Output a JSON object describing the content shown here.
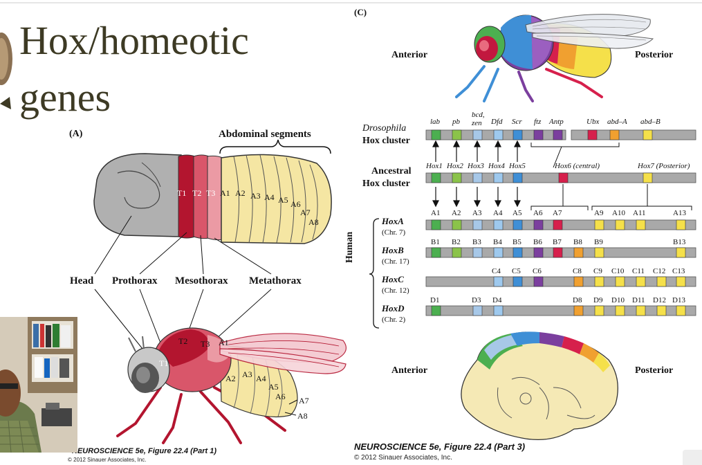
{
  "slide": {
    "title_line1": "Hox/homeotic",
    "title_line2": "genes"
  },
  "panel_a": {
    "label": "(A)",
    "abdominal_segments": "Abdominal segments",
    "segment_labels": [
      "T1",
      "T2",
      "T3",
      "A1",
      "A2",
      "A3",
      "A4",
      "A5",
      "A6",
      "A7",
      "A8"
    ],
    "region_labels": {
      "head": "Head",
      "prothorax": "Prothorax",
      "mesothorax": "Mesothorax",
      "metathorax": "Metathorax"
    },
    "adult_labels": {
      "t1": "T1",
      "t2": "T2",
      "t3": "T3",
      "a1": "A1",
      "a2": "A2",
      "a3": "A3",
      "a4": "A4",
      "a5": "A5",
      "a6": "A6",
      "a7": "A7",
      "a8": "A8"
    },
    "caption": "NEUROSCIENCE 5e, Figure 22.4 (Part 1)",
    "copyright": "© 2012 Sinauer Associates, Inc."
  },
  "panel_c": {
    "label": "(C)",
    "anterior": "Anterior",
    "posterior": "Posterior",
    "drosophila_label_1": "Drosophila",
    "drosophila_label_2": "Hox cluster",
    "drosophila_genes": [
      "lab",
      "pb",
      "bcd,",
      "zen",
      "Dfd",
      "Scr",
      "ftz",
      "Antp",
      "Ubx",
      "abd–A",
      "abd–B"
    ],
    "ancestral_label_1": "Ancestral",
    "ancestral_label_2": "Hox cluster",
    "ancestral_genes": [
      "Hox1",
      "Hox2",
      "Hox3",
      "Hox4",
      "Hox5",
      "Hox6 (central)",
      "Hox7 (Posterior)"
    ],
    "human_label": "Human",
    "hoxa": {
      "name": "HoxA",
      "chr": "(Chr. 7)",
      "genes": [
        "A1",
        "A2",
        "A3",
        "A4",
        "A5",
        "A6",
        "A7",
        "A9",
        "A10",
        "A11",
        "A13"
      ]
    },
    "hoxb": {
      "name": "HoxB",
      "chr": "(Chr. 17)",
      "genes": [
        "B1",
        "B2",
        "B3",
        "B4",
        "B5",
        "B6",
        "B7",
        "B8",
        "B9",
        "B13"
      ]
    },
    "hoxc": {
      "name": "HoxC",
      "chr": "(Chr. 12)",
      "genes": [
        "C4",
        "C5",
        "C6",
        "C8",
        "C9",
        "C10",
        "C11",
        "C12",
        "C13"
      ]
    },
    "hoxd": {
      "name": "HoxD",
      "chr": "(Chr. 2)",
      "genes": [
        "D1",
        "D3",
        "D4",
        "D8",
        "D9",
        "D10",
        "D11",
        "D12",
        "D13"
      ]
    },
    "embryo_anterior": "Anterior",
    "embryo_posterior": "Posterior",
    "caption": "NEUROSCIENCE 5e, Figure 22.4 (Part 3)",
    "copyright": "© 2012 Sinauer Associates, Inc."
  },
  "colors": {
    "title": "#3d3a24",
    "lab": "#4caf50",
    "pb": "#8bc34a",
    "hox3": "#a7c8e8",
    "dfd": "#9ec9ee",
    "scr": "#3f8fd6",
    "antp": "#7b3f9e",
    "ubx": "#d6204c",
    "abdA": "#f0a030",
    "abdB": "#f5e04a",
    "chromosome": "#a9a9a9"
  }
}
